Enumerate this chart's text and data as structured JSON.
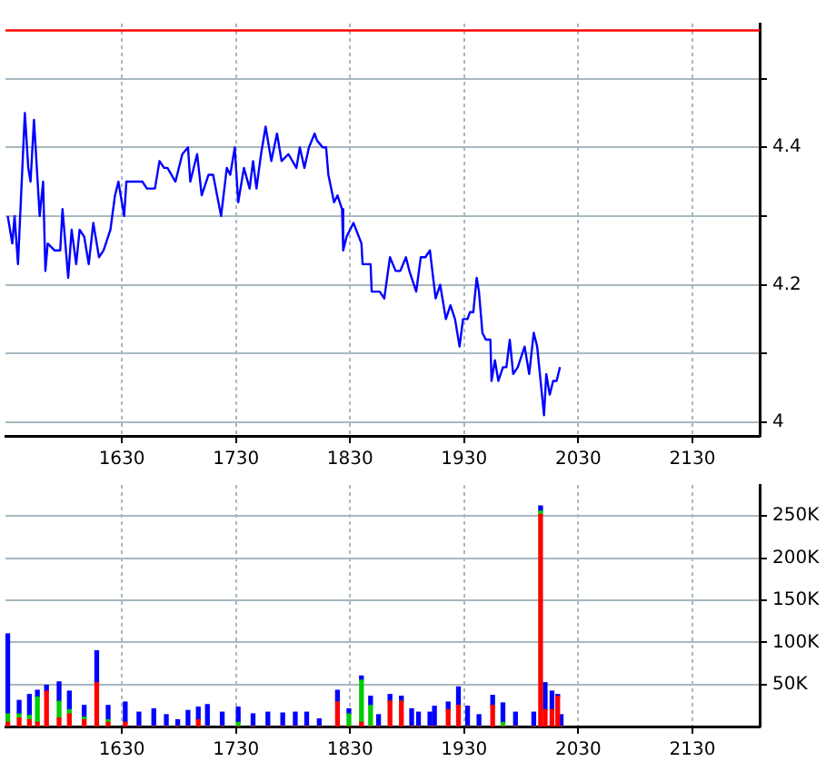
{
  "chart_data": [
    {
      "type": "line",
      "xlim": [
        1528,
        2189
      ],
      "xticks": [
        1630,
        1730,
        1830,
        1930,
        2030,
        2130
      ],
      "ylim": [
        3.98,
        4.58
      ],
      "yticks": [
        4,
        {
          "value": 4.1,
          "label": null
        },
        4.2,
        {
          "value": 4.3,
          "label": null
        },
        4.4,
        {
          "value": 4.5,
          "label": null
        }
      ],
      "grid": true,
      "marker": "none",
      "ref_lines": [
        {
          "axis": "y",
          "value": 4.57,
          "color": "#ff0000"
        }
      ],
      "x": [
        1530,
        1534,
        1536,
        1539,
        1545,
        1548,
        1550,
        1553,
        1558,
        1561,
        1563,
        1565,
        1571,
        1576,
        1578,
        1583,
        1586,
        1590,
        1593,
        1597,
        1601,
        1605,
        1610,
        1614,
        1620,
        1624,
        1627,
        1632,
        1634,
        1639,
        1648,
        1652,
        1659,
        1663,
        1667,
        1670,
        1677,
        1683,
        1688,
        1690,
        1696,
        1700,
        1706,
        1710,
        1717,
        1722,
        1725,
        1729,
        1732,
        1737,
        1742,
        1745,
        1748,
        1752,
        1756,
        1761,
        1766,
        1770,
        1776,
        1783,
        1786,
        1790,
        1794,
        1799,
        1801,
        1806,
        1809,
        1811,
        1816,
        1819,
        1823,
        1824,
        1827,
        1833,
        1840,
        1841,
        1848,
        1849,
        1856,
        1860,
        1865,
        1870,
        1874,
        1879,
        1882,
        1888,
        1892,
        1896,
        1900,
        1905,
        1909,
        1914,
        1918,
        1922,
        1926,
        1929,
        1933,
        1935,
        1938,
        1941,
        1943,
        1946,
        1949,
        1953,
        1954,
        1957,
        1960,
        1964,
        1967,
        1970,
        1973,
        1977,
        1983,
        1987,
        1991,
        1994,
        2000,
        2002,
        2005,
        2008,
        2011,
        2014
      ],
      "values": [
        4.3,
        4.26,
        4.3,
        4.23,
        4.45,
        4.37,
        4.35,
        4.44,
        4.3,
        4.35,
        4.22,
        4.26,
        4.25,
        4.25,
        4.31,
        4.21,
        4.28,
        4.23,
        4.28,
        4.27,
        4.23,
        4.29,
        4.24,
        4.25,
        4.28,
        4.33,
        4.35,
        4.3,
        4.35,
        4.35,
        4.35,
        4.34,
        4.34,
        4.38,
        4.37,
        4.37,
        4.35,
        4.39,
        4.4,
        4.35,
        4.39,
        4.33,
        4.36,
        4.36,
        4.3,
        4.37,
        4.36,
        4.4,
        4.32,
        4.37,
        4.34,
        4.38,
        4.34,
        4.39,
        4.43,
        4.38,
        4.42,
        4.38,
        4.39,
        4.37,
        4.4,
        4.37,
        4.4,
        4.42,
        4.41,
        4.4,
        4.4,
        4.36,
        4.32,
        4.33,
        4.31,
        4.25,
        4.27,
        4.29,
        4.26,
        4.23,
        4.23,
        4.19,
        4.19,
        4.18,
        4.24,
        4.22,
        4.22,
        4.24,
        4.22,
        4.19,
        4.24,
        4.24,
        4.25,
        4.18,
        4.2,
        4.15,
        4.17,
        4.15,
        4.11,
        4.15,
        4.15,
        4.16,
        4.16,
        4.21,
        4.19,
        4.13,
        4.12,
        4.12,
        4.06,
        4.09,
        4.06,
        4.08,
        4.08,
        4.12,
        4.07,
        4.08,
        4.11,
        4.07,
        4.13,
        4.11,
        4.01,
        4.07,
        4.04,
        4.06,
        4.06,
        4.08
      ],
      "color": "#0000ff"
    },
    {
      "type": "bar",
      "stacked": true,
      "xlim": [
        1528,
        2189
      ],
      "xticks": [
        1630,
        1730,
        1830,
        1930,
        2030,
        2130
      ],
      "ylim": [
        0,
        287000
      ],
      "yticks": [
        {
          "value": 50000,
          "label": "50K"
        },
        {
          "value": 100000,
          "label": "100K"
        },
        {
          "value": 150000,
          "label": "150K"
        },
        {
          "value": 200000,
          "label": "200K"
        },
        {
          "value": 250000,
          "label": "250K"
        }
      ],
      "grid": true,
      "x": [
        1530,
        1540,
        1549,
        1556,
        1564,
        1575,
        1584,
        1597,
        1608,
        1618,
        1633,
        1645,
        1658,
        1669,
        1679,
        1688,
        1697,
        1705,
        1718,
        1732,
        1745,
        1758,
        1771,
        1782,
        1792,
        1803,
        1819,
        1829,
        1840,
        1848,
        1855,
        1865,
        1875,
        1884,
        1890,
        1900,
        1904,
        1916,
        1925,
        1933,
        1943,
        1955,
        1964,
        1975,
        1991,
        1997,
        2001,
        2007,
        2012,
        2015
      ],
      "series": [
        {
          "color": "#ff0000",
          "values": [
            5000,
            10000,
            8000,
            5000,
            42000,
            10000,
            15000,
            8000,
            52000,
            5000,
            5000,
            0,
            0,
            0,
            0,
            0,
            8000,
            0,
            0,
            0,
            0,
            0,
            0,
            0,
            0,
            0,
            29000,
            0,
            5000,
            0,
            0,
            30000,
            30000,
            0,
            0,
            0,
            0,
            20000,
            25000,
            0,
            0,
            25000,
            0,
            0,
            0,
            252000,
            20000,
            20000,
            36000,
            0
          ]
        },
        {
          "color": "#00cc00",
          "values": [
            10000,
            5000,
            5000,
            30000,
            null,
            20000,
            5000,
            3000,
            0,
            3000,
            0,
            0,
            0,
            0,
            0,
            0,
            0,
            0,
            0,
            5000,
            0,
            0,
            0,
            0,
            0,
            0,
            0,
            15000,
            50000,
            25000,
            0,
            0,
            0,
            0,
            0,
            0,
            0,
            0,
            0,
            0,
            0,
            0,
            5000,
            0,
            0,
            4000,
            0,
            0,
            0,
            0
          ]
        },
        {
          "color": "#0000ff",
          "values": [
            95000,
            16000,
            25000,
            8000,
            7000,
            23000,
            22000,
            14000,
            38000,
            17000,
            24000,
            17000,
            21000,
            14000,
            8000,
            19000,
            15000,
            26000,
            17000,
            18000,
            15000,
            17000,
            16000,
            17000,
            17000,
            9000,
            14000,
            6000,
            5000,
            11000,
            14000,
            8000,
            6000,
            21000,
            17000,
            17000,
            24000,
            9000,
            22000,
            24000,
            14000,
            12000,
            23000,
            17000,
            17000,
            6000,
            32000,
            22000,
            2000,
            14000
          ]
        }
      ]
    }
  ]
}
